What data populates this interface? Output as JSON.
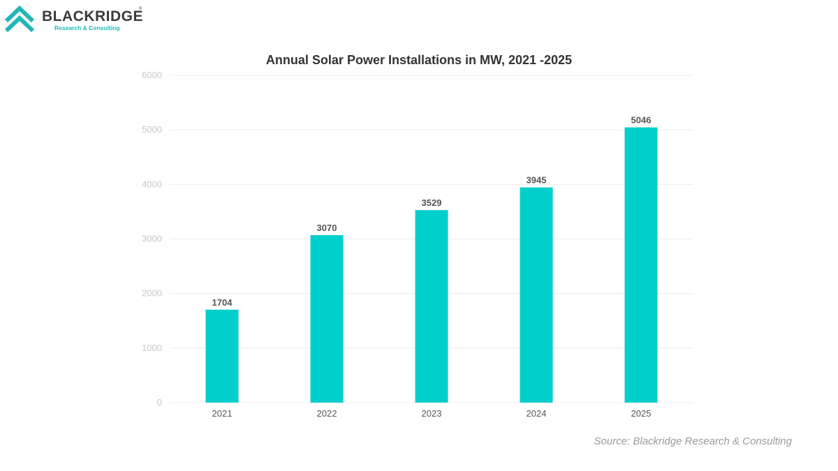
{
  "brand": {
    "name": "BLACKRIDGE",
    "registered": "®",
    "tagline": "Research & Consulting",
    "logo_color": "#1fb8b6"
  },
  "source": "Source: Blackridge Research & Consulting",
  "chart_data": {
    "type": "bar",
    "title": "Annual Solar Power Installations in MW, 2021 -2025",
    "xlabel": "",
    "ylabel": "",
    "categories": [
      "2021",
      "2022",
      "2023",
      "2024",
      "2025"
    ],
    "values": [
      1704,
      3070,
      3529,
      3945,
      5046
    ],
    "ylim": [
      0,
      6000
    ],
    "yticks": [
      "0",
      "1000",
      "2000",
      "3000",
      "4000",
      "5000",
      "6000"
    ],
    "data_labels": [
      "1704",
      "3070",
      "3529",
      "3945",
      "5046"
    ],
    "bar_color": "#00cfcb",
    "grid": true,
    "legend": "none"
  }
}
